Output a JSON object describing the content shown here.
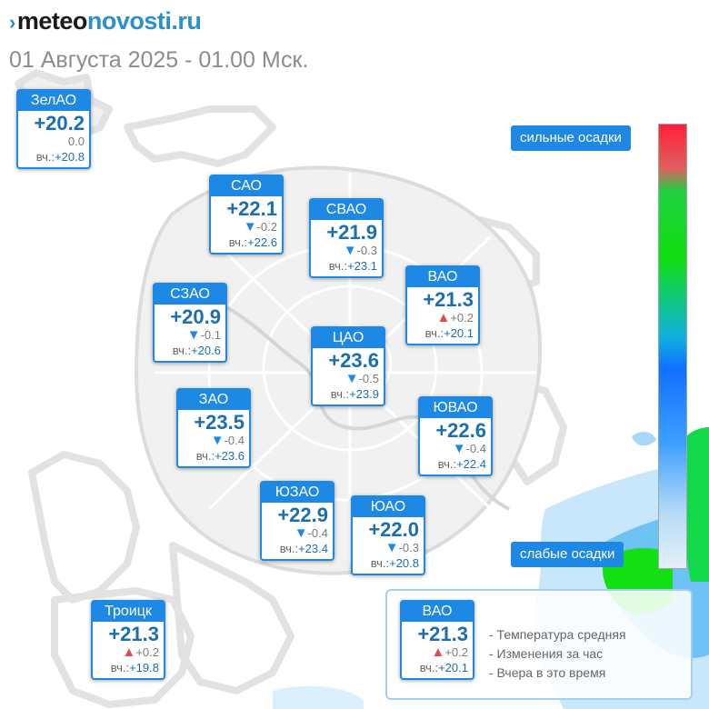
{
  "header": {
    "logo_left": "meteo",
    "logo_right": "novosti.ru",
    "subtitle": "01 Августа 2025 - 01.00 Мск."
  },
  "scale": {
    "top_label": "сильные осадки",
    "bottom_label": "слабые осадки"
  },
  "yest_label": "вч.:",
  "districts": [
    {
      "name": "ЗелАО",
      "temp": "+20.2",
      "change": "0.0",
      "trend": "none",
      "yesterday": "+20.8"
    },
    {
      "name": "САО",
      "temp": "+22.1",
      "change": "-0.2",
      "trend": "down",
      "yesterday": "+22.6"
    },
    {
      "name": "СВАО",
      "temp": "+21.9",
      "change": "-0.3",
      "trend": "down",
      "yesterday": "+23.1"
    },
    {
      "name": "ВАО",
      "temp": "+21.3",
      "change": "+0.2",
      "trend": "up",
      "yesterday": "+20.1"
    },
    {
      "name": "СЗАО",
      "temp": "+20.9",
      "change": "-0.1",
      "trend": "down",
      "yesterday": "+20.6"
    },
    {
      "name": "ЦАО",
      "temp": "+23.6",
      "change": "-0.5",
      "trend": "down",
      "yesterday": "+23.9"
    },
    {
      "name": "ЗАО",
      "temp": "+23.5",
      "change": "-0.4",
      "trend": "down",
      "yesterday": "+23.6"
    },
    {
      "name": "ЮВАО",
      "temp": "+22.6",
      "change": "-0.4",
      "trend": "down",
      "yesterday": "+22.4"
    },
    {
      "name": "ЮЗАО",
      "temp": "+22.9",
      "change": "-0.4",
      "trend": "down",
      "yesterday": "+23.4"
    },
    {
      "name": "ЮАО",
      "temp": "+22.0",
      "change": "-0.3",
      "trend": "down",
      "yesterday": "+20.8"
    },
    {
      "name": "Троицк",
      "temp": "+21.3",
      "change": "+0.2",
      "trend": "up",
      "yesterday": "+19.8"
    }
  ],
  "legend": {
    "sample": {
      "name": "ВАО",
      "temp": "+21.3",
      "change": "+0.2",
      "trend": "up",
      "yesterday": "+20.1"
    },
    "lines": [
      "- Температура средняя",
      "- Изменения за час",
      "- Вчера в это время"
    ]
  },
  "colors": {
    "accent": "#1e88e5",
    "value": "#1a6fb0",
    "arrow_down": "#1e88e5",
    "arrow_up": "#e24b4b",
    "precip_light": "#9fd3f5",
    "precip_medium": "#2fa8f0",
    "precip_heavy": "#10e010"
  }
}
